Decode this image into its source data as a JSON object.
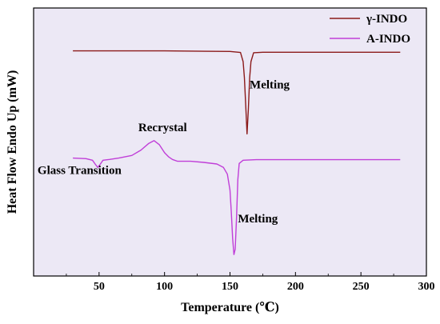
{
  "chart_data": {
    "type": "line",
    "title": "",
    "xlabel": "Temperature (℃)",
    "ylabel": "Heat Flow Endo Up (mW)",
    "xlim": [
      0,
      300
    ],
    "xticks": [
      "50",
      "100",
      "150",
      "200",
      "250",
      "300"
    ],
    "ylim": [
      0,
      1
    ],
    "y_tick_labels_shown": false,
    "grid": false,
    "background": "#ece8f5",
    "legend_position": "top-right",
    "series": [
      {
        "name": "γ-INDO",
        "color": "#8b1a1a",
        "x": [
          30,
          100,
          150,
          158,
          160,
          161,
          162,
          163,
          164,
          165,
          166,
          168,
          175,
          280
        ],
        "y": [
          0.84,
          0.84,
          0.838,
          0.834,
          0.8,
          0.74,
          0.64,
          0.53,
          0.62,
          0.74,
          0.8,
          0.833,
          0.835,
          0.835
        ]
      },
      {
        "name": "A-INDO",
        "color": "#c03fd8",
        "x": [
          30,
          40,
          45,
          47,
          49,
          51,
          53,
          58,
          65,
          75,
          82,
          88,
          92,
          96,
          100,
          103,
          106,
          110,
          120,
          130,
          140,
          145,
          148,
          150,
          151,
          152,
          153,
          154,
          155,
          156,
          157,
          160,
          170,
          280
        ],
        "y": [
          0.44,
          0.438,
          0.432,
          0.418,
          0.405,
          0.418,
          0.432,
          0.435,
          0.44,
          0.45,
          0.47,
          0.495,
          0.505,
          0.49,
          0.46,
          0.445,
          0.435,
          0.428,
          0.428,
          0.424,
          0.418,
          0.405,
          0.38,
          0.32,
          0.24,
          0.14,
          0.08,
          0.1,
          0.22,
          0.36,
          0.42,
          0.432,
          0.434,
          0.434
        ]
      }
    ],
    "annotations": [
      {
        "text": "Melting",
        "x": 165,
        "y": 0.7
      },
      {
        "text": "Recrystal",
        "x": 80,
        "y": 0.54
      },
      {
        "text": "Glass Transition",
        "x": 3,
        "y": 0.38
      },
      {
        "text": "Melting",
        "x": 156,
        "y": 0.2
      }
    ]
  }
}
